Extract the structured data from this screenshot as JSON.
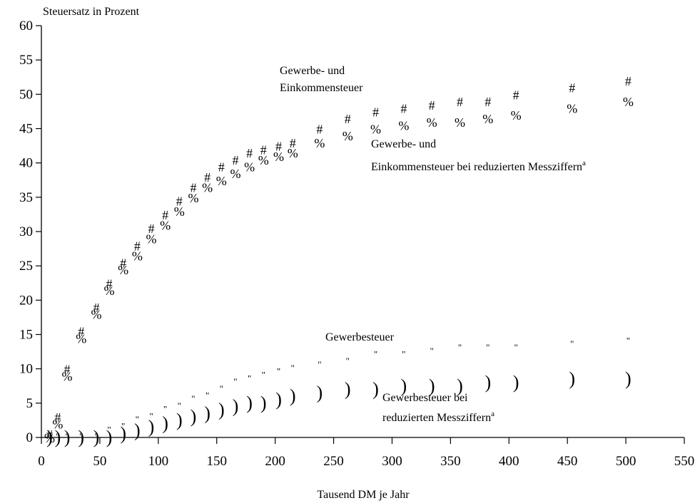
{
  "chart_data": {
    "type": "scatter",
    "ylabel": "Steuersatz in Prozent",
    "xlabel": "Tausend DM je Jahr",
    "xlim": [
      0,
      550
    ],
    "ylim": [
      0,
      60
    ],
    "xticks": [
      0,
      50,
      100,
      150,
      200,
      250,
      300,
      350,
      400,
      450,
      500,
      550
    ],
    "yticks": [
      0,
      5,
      10,
      15,
      20,
      25,
      30,
      35,
      40,
      45,
      50,
      55,
      60
    ],
    "series": [
      {
        "name": "Gewerbe- und Einkommensteuer",
        "marker": "#",
        "x": [
          7,
          14,
          22,
          34,
          47,
          58,
          70,
          82,
          94,
          106,
          118,
          130,
          142,
          154,
          166,
          178,
          190,
          203,
          215,
          238,
          262,
          286,
          310,
          334,
          358,
          382,
          406,
          454,
          502
        ],
        "y": [
          0.5,
          3,
          10,
          15.5,
          19,
          22.5,
          25.5,
          28,
          30.5,
          32.5,
          34.5,
          36.5,
          38,
          39.5,
          40.5,
          41.5,
          42,
          42.5,
          43,
          45,
          46.5,
          47.5,
          48,
          48.5,
          49,
          49,
          50,
          51,
          52
        ]
      },
      {
        "name": "Gewerbe- und Einkommensteuer bei reduzierten Messziffern",
        "marker": "%",
        "x": [
          7,
          14,
          22,
          34,
          47,
          58,
          70,
          82,
          94,
          106,
          118,
          130,
          142,
          154,
          166,
          178,
          190,
          203,
          215,
          238,
          262,
          286,
          310,
          334,
          358,
          382,
          406,
          454,
          502
        ],
        "y": [
          0,
          2,
          9,
          14.5,
          18,
          21.5,
          24.5,
          26.5,
          29,
          31,
          33,
          35,
          36.5,
          37.5,
          38.5,
          39.5,
          40.5,
          41,
          41.5,
          43,
          44,
          45,
          45.5,
          46,
          46,
          46.5,
          47,
          48,
          49
        ]
      },
      {
        "name": "Gewerbesteuer",
        "marker": "\"",
        "x": [
          7,
          14,
          22,
          34,
          47,
          58,
          70,
          82,
          94,
          106,
          118,
          130,
          142,
          154,
          166,
          178,
          190,
          203,
          215,
          238,
          262,
          286,
          310,
          334,
          358,
          382,
          406,
          454,
          502
        ],
        "y": [
          0.5,
          0.5,
          0.5,
          0.5,
          0.5,
          1.5,
          2,
          3,
          3.5,
          4.5,
          5,
          6,
          6.5,
          7.5,
          8.5,
          9,
          9.5,
          10,
          10.5,
          11,
          11.5,
          12.5,
          12.5,
          13,
          13.5,
          13.5,
          13.5,
          14,
          14.5
        ]
      },
      {
        "name": "Gewerbesteuer bei reduzierten Messziffern",
        "marker": ")",
        "x": [
          7,
          14,
          22,
          34,
          47,
          58,
          70,
          82,
          94,
          106,
          118,
          130,
          142,
          154,
          166,
          178,
          190,
          203,
          215,
          238,
          262,
          286,
          310,
          334,
          358,
          382,
          406,
          454,
          502
        ],
        "y": [
          0,
          0,
          0,
          0,
          0,
          0,
          0.5,
          1,
          1.5,
          2,
          2.5,
          3,
          3.5,
          4,
          4.5,
          5,
          5,
          5.5,
          6,
          6.5,
          7,
          7,
          7.5,
          7.5,
          7.5,
          8,
          8,
          8.5,
          8.5
        ]
      }
    ],
    "annotations": [
      {
        "lines": [
          "Gewerbe- und",
          "Einkommensteuer"
        ],
        "superscript": ""
      },
      {
        "lines": [
          "Gewerbe- und",
          "Einkommensteuer bei reduzierten Messziffern"
        ],
        "superscript": "a"
      },
      {
        "lines": [
          "Gewerbesteuer"
        ],
        "superscript": ""
      },
      {
        "lines": [
          "Gewerbesteuer bei",
          "reduzierten Messziffern"
        ],
        "superscript": "a"
      }
    ]
  }
}
